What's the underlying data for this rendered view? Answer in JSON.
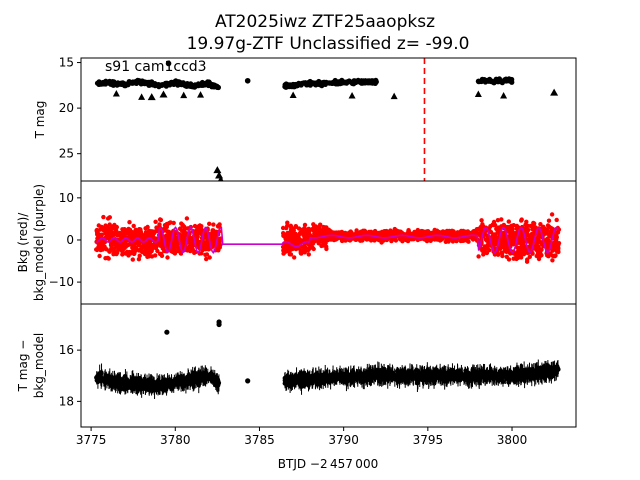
{
  "title_line1": "AT2025iwz  ZTF25aaopksz",
  "title_line2": "19.97g-ZTF Unclassified z= -99.0",
  "xlabel": "BTJD −2 457 000",
  "chart_data": [
    {
      "type": "scatter",
      "panel": "top",
      "ylabel": "T mag",
      "annotation": "s91 cam1ccd3",
      "xlim": [
        3774.4,
        3803.8
      ],
      "ylim": [
        28.0,
        14.5
      ],
      "yticks": [
        15,
        20,
        25
      ],
      "vline_x": 3794.8,
      "series": [
        {
          "kind": "points",
          "x": [
            3775.3,
            3776,
            3777,
            3778,
            3779,
            3780,
            3781,
            3782,
            3782.6
          ],
          "y": [
            17.3,
            17.2,
            17.4,
            17.1,
            17.5,
            17.2,
            17.6,
            17.3,
            17.8
          ]
        },
        {
          "kind": "upper_limits",
          "x": [
            3778.6,
            3779.3,
            3782.5,
            3782.6,
            3782.7,
            3802.5
          ],
          "y": [
            18.8,
            18.5,
            26.8,
            27.4,
            27.9,
            18.3
          ]
        },
        {
          "kind": "points",
          "x": [
            3779.6,
            3784.3
          ],
          "y": [
            15.1,
            17.0
          ]
        },
        {
          "kind": "points",
          "x": [
            3786.5,
            3788,
            3790,
            3792,
            3795,
            3798,
            3800,
            3802.8
          ],
          "y": [
            17.6,
            17.3,
            17.2,
            17.1,
            17.0,
            17.0,
            17.0,
            16.9
          ]
        }
      ]
    },
    {
      "type": "scatter",
      "panel": "middle",
      "ylabel": "Bkg (red)/\nbkg_model (purple)",
      "xlim": [
        3774.4,
        3803.8
      ],
      "ylim": [
        -15.2,
        14.0
      ],
      "yticks": [
        10,
        0,
        -10
      ],
      "series": [
        {
          "name": "Bkg",
          "color": "#ff0000",
          "x": [
            3775.3,
            3777,
            3779,
            3780,
            3781,
            3782.7,
            3786.4,
            3788,
            3790,
            3794,
            3798,
            3800,
            3802.8
          ],
          "y": [
            0,
            -3,
            3,
            -8,
            10,
            -5,
            -3,
            6,
            1,
            0.5,
            0.5,
            -8,
            7
          ]
        },
        {
          "name": "bkg_model",
          "color": "#cc00cc",
          "x": [
            3775.3,
            3777,
            3779,
            3780,
            3781,
            3782.7,
            3786.4,
            3788,
            3790,
            3794,
            3798,
            3800,
            3802.8
          ],
          "y": [
            0,
            1,
            -1,
            -2,
            0,
            -1,
            -1,
            -1,
            0.5,
            1,
            1,
            -2,
            -1
          ]
        }
      ]
    },
    {
      "type": "scatter",
      "panel": "bottom",
      "ylabel": "T mag −\nbkg_model",
      "xlim": [
        3774.4,
        3803.8
      ],
      "ylim": [
        19.0,
        14.2
      ],
      "yticks": [
        16,
        18
      ],
      "xticks": [
        3775,
        3780,
        3785,
        3790,
        3795,
        3800
      ],
      "series": [
        {
          "kind": "points",
          "x": [
            3775.3,
            3777,
            3779,
            3780.5,
            3782,
            3782.6
          ],
          "y": [
            17.1,
            17.3,
            17.4,
            17.2,
            17.0,
            17.3
          ]
        },
        {
          "kind": "points",
          "x": [
            3779.5,
            3782.6,
            3782.6,
            3784.3
          ],
          "y": [
            15.3,
            15.0,
            14.9,
            17.2
          ]
        },
        {
          "kind": "points",
          "x": [
            3786.5,
            3789,
            3792,
            3795,
            3798,
            3800,
            3802.8
          ],
          "y": [
            17.2,
            17.1,
            17.0,
            17.0,
            17.0,
            17.0,
            16.8
          ]
        }
      ]
    }
  ]
}
